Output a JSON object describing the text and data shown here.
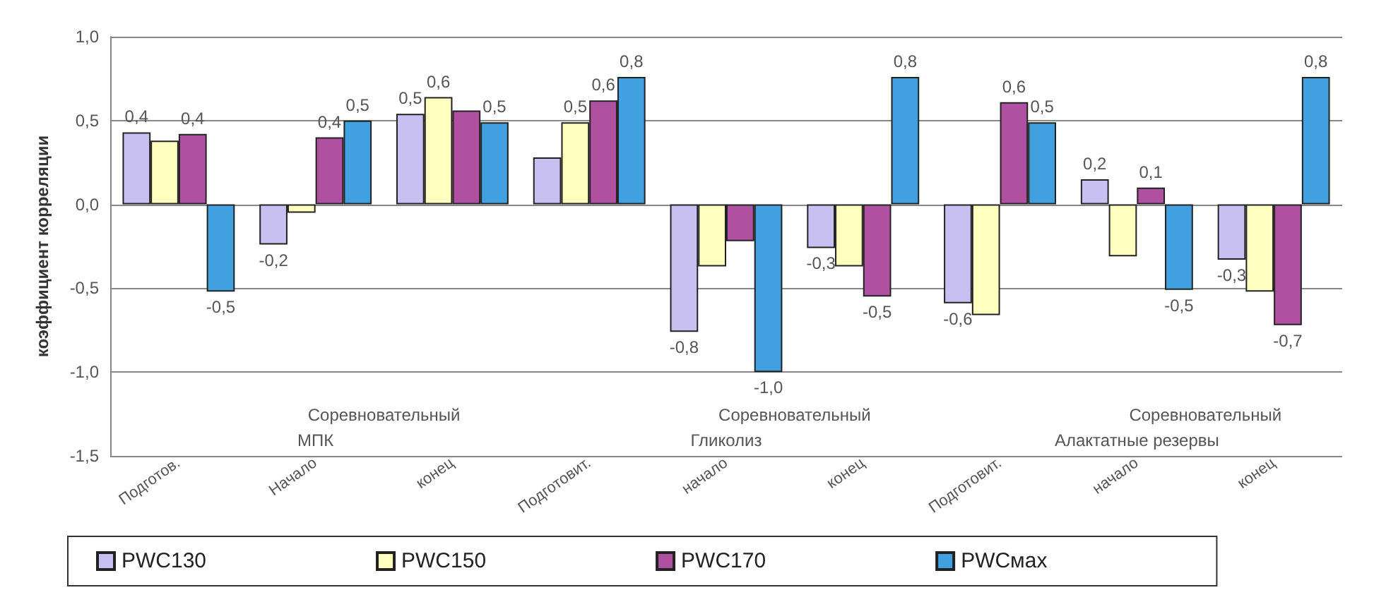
{
  "chart_data": {
    "type": "bar",
    "ylabel": "коэффициент корреляции",
    "categories": [
      "Подготов.",
      "Начало",
      "конец",
      "Подготовит.",
      "начало",
      "конец",
      "Подготовит.",
      "начало",
      "конец"
    ],
    "series": [
      {
        "name": "PWC130",
        "color": "#c8c0f0",
        "values": [
          0.43,
          -0.24,
          0.54,
          0.28,
          -0.76,
          -0.26,
          -0.59,
          0.15,
          -0.33
        ],
        "value_labels": [
          "0,4",
          "-0,2",
          "0,5",
          null,
          "-0,8",
          "-0,3",
          "-0,6",
          "0,2",
          "-0,3"
        ]
      },
      {
        "name": "PWC150",
        "color": "#ffffc0",
        "values": [
          0.38,
          -0.05,
          0.64,
          0.49,
          -0.37,
          -0.37,
          -0.66,
          -0.31,
          -0.52
        ],
        "value_labels": [
          null,
          null,
          "0,6",
          "0,5",
          null,
          null,
          null,
          null,
          null
        ]
      },
      {
        "name": "PWC170",
        "color": "#b050a0",
        "values": [
          0.42,
          0.4,
          0.56,
          0.62,
          -0.22,
          -0.55,
          0.61,
          0.1,
          -0.72
        ],
        "value_labels": [
          "0,4",
          "0,4",
          null,
          "0,6",
          null,
          "-0,5",
          "0,6",
          "0,1",
          "-0,7"
        ]
      },
      {
        "name": "PWCмах",
        "color": "#40a0e0",
        "values": [
          -0.52,
          0.5,
          0.49,
          0.76,
          -1.0,
          0.76,
          0.49,
          -0.51,
          0.76
        ],
        "value_labels": [
          "-0,5",
          "0,5",
          "0,5",
          "0,8",
          "-1,0",
          "0,8",
          "0,5",
          "-0,5",
          "0,8"
        ]
      }
    ],
    "annotations": [
      "Соревновательный",
      "Соревновательный",
      "Соревновательный",
      "МПК",
      "Гликолиз",
      "Алактатные резервы"
    ],
    "ylim": [
      -1.5,
      1.0
    ],
    "yticks": [
      {
        "value": -1.5,
        "label": "-1,5"
      },
      {
        "value": -1.0,
        "label": "-1,0"
      },
      {
        "value": -0.5,
        "label": "-0,5"
      },
      {
        "value": 0,
        "label": "0,0"
      },
      {
        "value": 0.5,
        "label": "0,5"
      },
      {
        "value": 1.0,
        "label": "1,0"
      }
    ],
    "grid": "y",
    "legend": "bottom"
  }
}
